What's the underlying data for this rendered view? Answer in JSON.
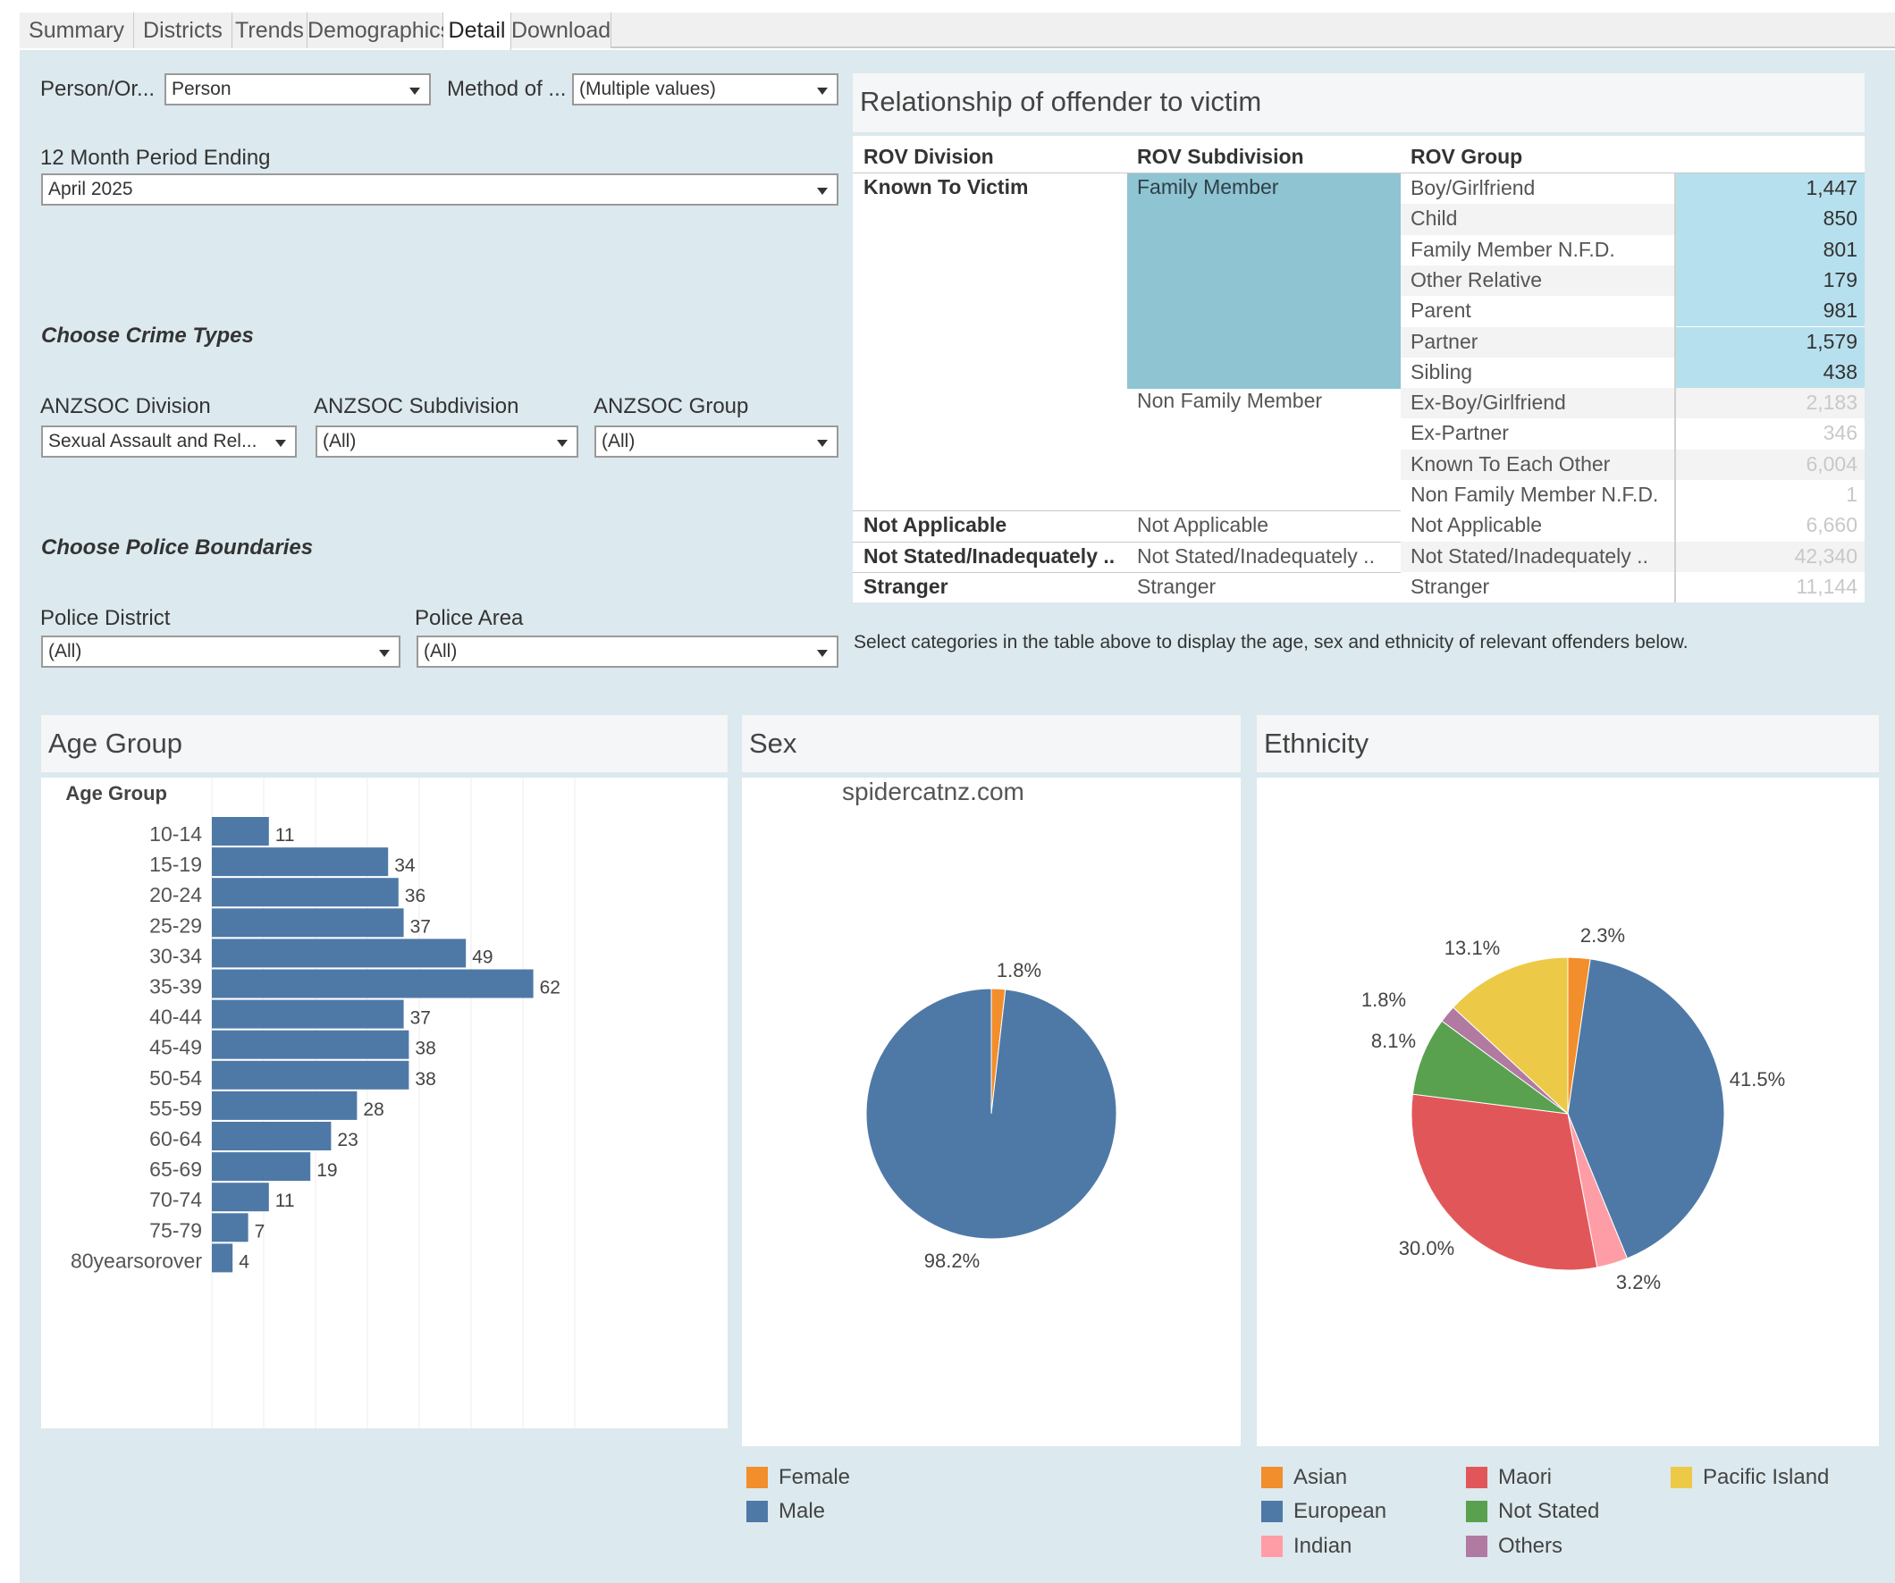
{
  "tabs": [
    {
      "label": "Summary",
      "active": false
    },
    {
      "label": "Districts",
      "active": false
    },
    {
      "label": "Trends",
      "active": false
    },
    {
      "label": "Demographics",
      "active": false
    },
    {
      "label": "Detail",
      "active": true
    },
    {
      "label": "Download",
      "active": false
    }
  ],
  "filters": {
    "person_org": {
      "label": "Person/Or...",
      "value": "Person"
    },
    "method": {
      "label": "Method of ...",
      "value": "(Multiple values)"
    },
    "period": {
      "label": "12 Month Period Ending",
      "value": "April 2025"
    },
    "crime_types_header": "Choose Crime Types",
    "anzsoc_division": {
      "label": "ANZSOC Division",
      "value": "Sexual Assault and Rel..."
    },
    "anzsoc_subdivision": {
      "label": "ANZSOC Subdivision",
      "value": "(All)"
    },
    "anzsoc_group": {
      "label": "ANZSOC Group",
      "value": "(All)"
    },
    "boundaries_header": "Choose Police Boundaries",
    "police_district": {
      "label": "Police District",
      "value": "(All)"
    },
    "police_area": {
      "label": "Police Area",
      "value": "(All)"
    }
  },
  "rov": {
    "title": "Relationship of offender to victim",
    "headers": {
      "division": "ROV Division",
      "subdivision": "ROV Subdivision",
      "group": "ROV Group"
    },
    "known_to_victim": "Known To Victim",
    "family_member": "Family Member",
    "non_family_member": "Non Family Member",
    "family_rows": [
      {
        "group": "Boy/Girlfriend",
        "value": "1,447"
      },
      {
        "group": "Child",
        "value": "850"
      },
      {
        "group": "Family Member N.F.D.",
        "value": "801"
      },
      {
        "group": "Other Relative",
        "value": "179"
      },
      {
        "group": "Parent",
        "value": "981"
      },
      {
        "group": "Partner",
        "value": "1,579"
      },
      {
        "group": "Sibling",
        "value": "438"
      }
    ],
    "nonfamily_rows": [
      {
        "group": "Ex-Boy/Girlfriend",
        "value": "2,183"
      },
      {
        "group": "Ex-Partner",
        "value": "346"
      },
      {
        "group": "Known To Each Other",
        "value": "6,004"
      },
      {
        "group": "Non Family Member N.F.D.",
        "value": "1"
      }
    ],
    "other_rows": [
      {
        "division": "Not Applicable",
        "subdivision": "Not Applicable",
        "group": "Not Applicable",
        "value": "6,660"
      },
      {
        "division": "Not Stated/Inadequately ..",
        "subdivision": "Not Stated/Inadequately ..",
        "group": "Not Stated/Inadequately ..",
        "value": "42,340"
      },
      {
        "division": "Stranger",
        "subdivision": "Stranger",
        "group": "Stranger",
        "value": "11,144"
      }
    ],
    "note": "Select categories in the  table above to display the age, sex and ethnicity of relevant offenders below."
  },
  "age_panel": {
    "title": "Age Group"
  },
  "sex_panel": {
    "title": "Sex",
    "watermark": "spidercatnz.com"
  },
  "eth_panel": {
    "title": "Ethnicity"
  },
  "colors": {
    "bar": "#4e79a7",
    "female": "#f28e2b",
    "male": "#4e79a7",
    "asian": "#f28e2b",
    "european": "#4e79a7",
    "indian": "#ff9da7",
    "maori": "#e15759",
    "not_stated": "#59a14f",
    "others": "#b07aa1",
    "pacific": "#edc948",
    "selected": "#8fc4d3",
    "selected_num": "#b7e0ee"
  },
  "chart_data": [
    {
      "type": "bar",
      "orientation": "horizontal",
      "ylabel": "Age Group",
      "categories": [
        "10-14",
        "15-19",
        "20-24",
        "25-29",
        "30-34",
        "35-39",
        "40-44",
        "45-49",
        "50-54",
        "55-59",
        "60-64",
        "65-69",
        "70-74",
        "75-79",
        "80yearsorover"
      ],
      "values": [
        11,
        34,
        36,
        37,
        49,
        62,
        37,
        38,
        38,
        28,
        23,
        19,
        11,
        7,
        4
      ],
      "xlim": [
        0,
        75
      ]
    },
    {
      "type": "pie",
      "labels": [
        "Female",
        "Male"
      ],
      "values": [
        1.8,
        98.2
      ],
      "value_labels": [
        "1.8%",
        "98.2%"
      ],
      "colors": [
        "#f28e2b",
        "#4e79a7"
      ]
    },
    {
      "type": "pie",
      "labels": [
        "Asian",
        "European",
        "Indian",
        "Maori",
        "Not Stated",
        "Others",
        "Pacific Island"
      ],
      "values": [
        2.3,
        41.5,
        3.2,
        30.0,
        8.1,
        1.8,
        13.1
      ],
      "value_labels": [
        "2.3%",
        "41.5%",
        "3.2%",
        "30.0%",
        "8.1%",
        "1.8%",
        "13.1%"
      ],
      "colors": [
        "#f28e2b",
        "#4e79a7",
        "#ff9da7",
        "#e15759",
        "#59a14f",
        "#b07aa1",
        "#edc948"
      ]
    }
  ]
}
